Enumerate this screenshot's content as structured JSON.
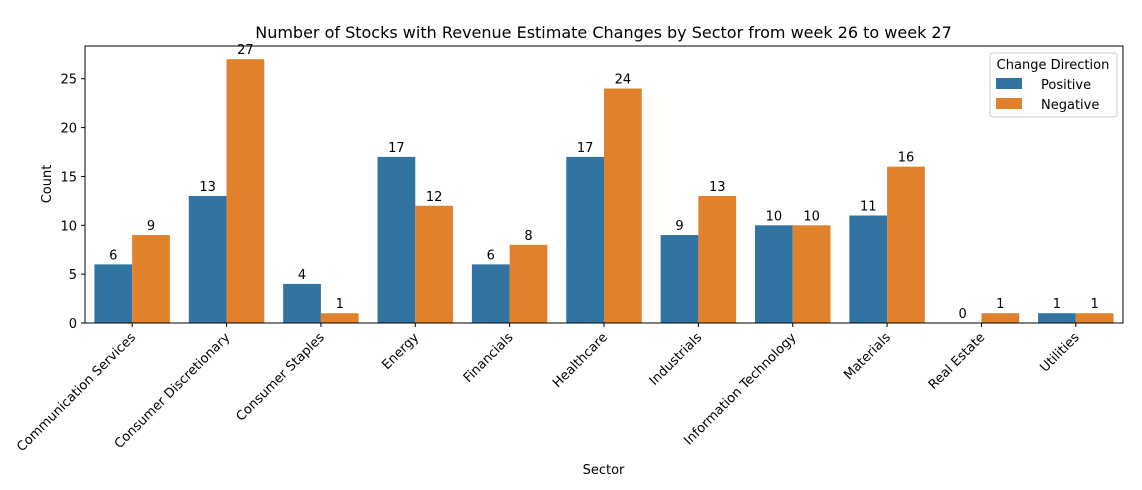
{
  "chart_data": {
    "type": "bar",
    "title": "Number of Stocks with Revenue Estimate Changes by Sector from week 26 to week 27",
    "xlabel": "Sector",
    "ylabel": "Count",
    "ylim": [
      0,
      28.35
    ],
    "yticks": [
      0,
      5,
      10,
      15,
      20,
      25
    ],
    "categories": [
      "Communication Services",
      "Consumer Discretionary",
      "Consumer Staples",
      "Energy",
      "Financials",
      "Healthcare",
      "Industrials",
      "Information Technology",
      "Materials",
      "Real Estate",
      "Utilities"
    ],
    "series": [
      {
        "name": "Positive",
        "color": "#3274a1",
        "values": [
          6,
          13,
          4,
          17,
          6,
          17,
          9,
          10,
          11,
          0,
          1
        ]
      },
      {
        "name": "Negative",
        "color": "#e1812c",
        "values": [
          9,
          27,
          1,
          12,
          8,
          24,
          13,
          10,
          16,
          1,
          1
        ]
      }
    ],
    "legend": {
      "title": "Change Direction",
      "placement": "top-right"
    },
    "grid": false
  }
}
